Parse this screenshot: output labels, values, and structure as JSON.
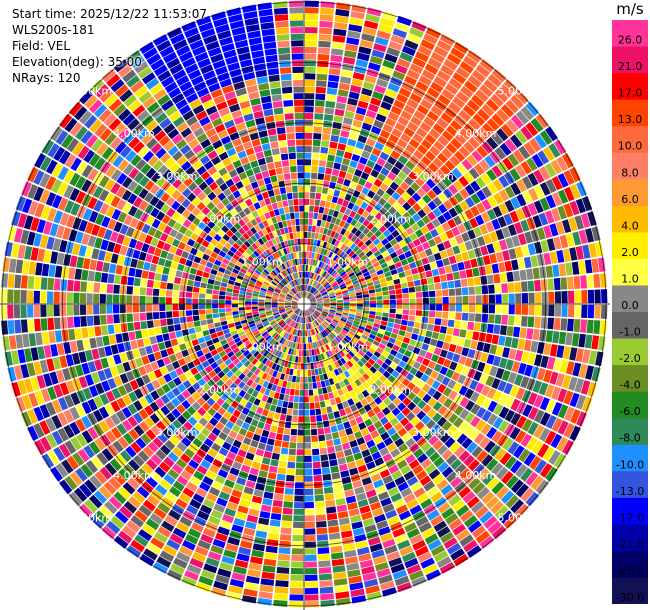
{
  "header": {
    "start_time": "Start time: 2025/12/22 11:53:07",
    "instrument": "WLS200s-181",
    "field": "Field: VEL",
    "elevation": "Elevation(deg): 35.00",
    "nrays": "NRays: 120"
  },
  "colorbar": {
    "unit": "m/s",
    "bins": [
      {
        "label": "26.0",
        "color": "#ff3399"
      },
      {
        "label": "21.0",
        "color": "#ee1166"
      },
      {
        "label": "17.0",
        "color": "#ff0000"
      },
      {
        "label": "13.0",
        "color": "#ff4400"
      },
      {
        "label": "10.0",
        "color": "#ff6a3d"
      },
      {
        "label": "8.0",
        "color": "#ff7f66"
      },
      {
        "label": "6.0",
        "color": "#ff9933"
      },
      {
        "label": "4.0",
        "color": "#ffbb00"
      },
      {
        "label": "2.0",
        "color": "#ffee00"
      },
      {
        "label": "1.0",
        "color": "#ffff44"
      },
      {
        "label": "0.0",
        "color": "#888888"
      },
      {
        "label": "-1.0",
        "color": "#666666"
      },
      {
        "label": "-2.0",
        "color": "#99cc33"
      },
      {
        "label": "-4.0",
        "color": "#6b8e23"
      },
      {
        "label": "-6.0",
        "color": "#228b22"
      },
      {
        "label": "-8.0",
        "color": "#2e8b57"
      },
      {
        "label": "-10.0",
        "color": "#1e90ff"
      },
      {
        "label": "-13.0",
        "color": "#3355dd"
      },
      {
        "label": "-17.0",
        "color": "#0000ff"
      },
      {
        "label": "-21.0",
        "color": "#0000aa"
      },
      {
        "label": "-26.0",
        "color": "#000066"
      },
      {
        "label": "-30.0",
        "color": "#111155"
      }
    ]
  },
  "range_rings": {
    "labels": [
      "1.00km",
      "2.00km",
      "3.00km",
      "4.00km",
      "5.00km"
    ],
    "values_km": [
      1,
      2,
      3,
      4,
      5
    ]
  },
  "ppi": {
    "nrays": 120,
    "gates": 46,
    "max_range_km": 5
  }
}
